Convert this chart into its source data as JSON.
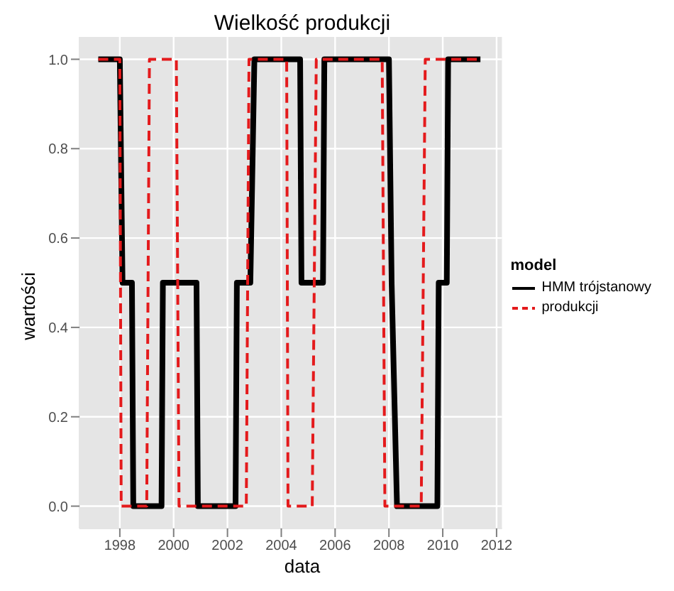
{
  "chart_data": {
    "type": "line",
    "title": "Wielkość produkcji",
    "xlabel": "data",
    "ylabel": "wartości",
    "legend_title": "model",
    "legend": "right",
    "grid": true,
    "xlim": [
      1996.5,
      2012.2
    ],
    "xticks": [
      1998,
      2000,
      2002,
      2004,
      2006,
      2008,
      2010,
      2012
    ],
    "ylim": [
      -0.05,
      1.05
    ],
    "yticks": [
      {
        "value": 0,
        "label": "0.0"
      },
      {
        "value": 0.2,
        "label": "0.2"
      },
      {
        "value": 0.4,
        "label": "0.4"
      },
      {
        "value": 0.6,
        "label": "0.6"
      },
      {
        "value": 0.8,
        "label": "0.8"
      },
      {
        "value": 1,
        "label": "1.0"
      }
    ],
    "series": [
      {
        "name": "HMM trójstanowy",
        "color": "#000000",
        "line_style": "solid",
        "x": [
          1997.2,
          1998.0,
          1998.1,
          1998.45,
          1998.5,
          1999.55,
          1999.6,
          2000.85,
          2000.9,
          2002.3,
          2002.35,
          2002.85,
          2003.0,
          2004.7,
          2004.75,
          2005.55,
          2005.6,
          2008.0,
          2008.1,
          2008.3,
          2009.8,
          2009.85,
          2010.15,
          2010.2,
          2011.4
        ],
        "values": [
          1,
          1,
          0.5,
          0.5,
          0,
          0,
          0.5,
          0.5,
          0,
          0,
          0.5,
          0.5,
          1,
          1,
          0.5,
          0.5,
          1,
          1,
          0.5,
          0,
          0,
          0.5,
          0.5,
          1,
          1
        ]
      },
      {
        "name": "produkcji",
        "color": "#e41a1c",
        "line_style": "dashed",
        "x": [
          1997.2,
          1998.0,
          1998.05,
          1999.0,
          1999.1,
          2000.1,
          2000.2,
          2002.7,
          2002.8,
          2004.2,
          2004.25,
          2005.15,
          2005.3,
          2007.75,
          2007.85,
          2009.2,
          2009.35,
          2011.4
        ],
        "values": [
          1,
          1,
          0,
          0,
          1,
          1,
          0,
          0,
          1,
          1,
          0,
          0,
          1,
          1,
          0,
          0,
          1,
          1
        ]
      }
    ]
  }
}
